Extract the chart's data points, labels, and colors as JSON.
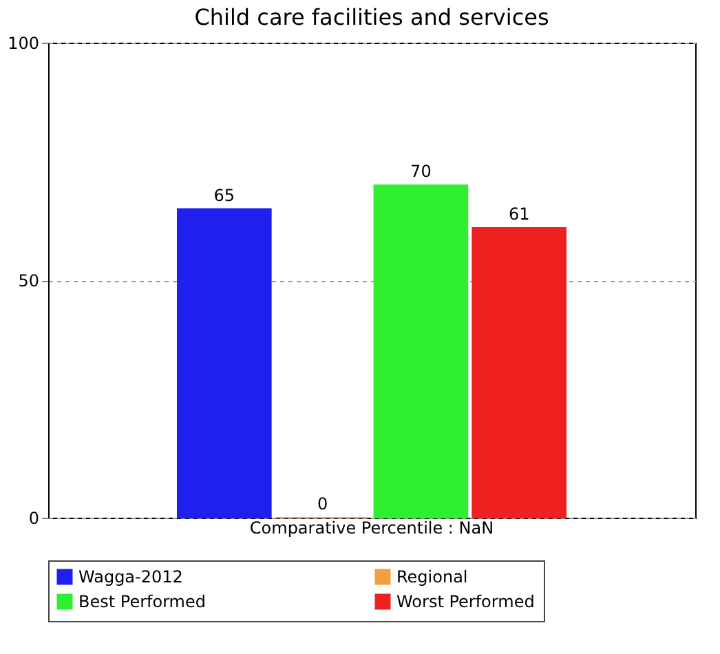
{
  "chart_data": {
    "type": "bar",
    "title": "Child care facilities and services",
    "categories": [
      "Comparative Percentile : NaN"
    ],
    "series": [
      {
        "name": "Wagga-2012",
        "color": "#2020ee",
        "values": [
          65
        ]
      },
      {
        "name": "Regional",
        "color": "#f0a040",
        "values": [
          0
        ]
      },
      {
        "name": "Best Performed",
        "color": "#30ee30",
        "values": [
          70
        ]
      },
      {
        "name": "Worst Performed",
        "color": "#ee2020",
        "values": [
          61
        ]
      }
    ],
    "ylim": [
      0,
      100
    ],
    "yticks": [
      0,
      50,
      100
    ],
    "grid": "y",
    "legend": "bottom",
    "data_labels": true
  }
}
